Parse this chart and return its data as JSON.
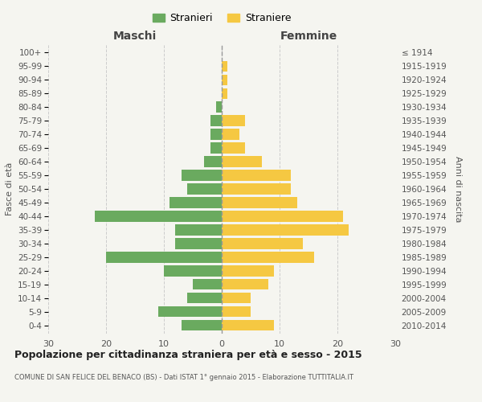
{
  "age_groups": [
    "0-4",
    "5-9",
    "10-14",
    "15-19",
    "20-24",
    "25-29",
    "30-34",
    "35-39",
    "40-44",
    "45-49",
    "50-54",
    "55-59",
    "60-64",
    "65-69",
    "70-74",
    "75-79",
    "80-84",
    "85-89",
    "90-94",
    "95-99",
    "100+"
  ],
  "birth_years": [
    "2010-2014",
    "2005-2009",
    "2000-2004",
    "1995-1999",
    "1990-1994",
    "1985-1989",
    "1980-1984",
    "1975-1979",
    "1970-1974",
    "1965-1969",
    "1960-1964",
    "1955-1959",
    "1950-1954",
    "1945-1949",
    "1940-1944",
    "1935-1939",
    "1930-1934",
    "1925-1929",
    "1920-1924",
    "1915-1919",
    "≤ 1914"
  ],
  "males": [
    7,
    11,
    6,
    5,
    10,
    20,
    8,
    8,
    22,
    9,
    6,
    7,
    3,
    2,
    2,
    2,
    1,
    0,
    0,
    0,
    0
  ],
  "females": [
    9,
    5,
    5,
    8,
    9,
    16,
    14,
    22,
    21,
    13,
    12,
    12,
    7,
    4,
    3,
    4,
    0,
    1,
    1,
    1,
    0
  ],
  "male_color": "#6aaa5f",
  "female_color": "#f5c842",
  "title": "Popolazione per cittadinanza straniera per età e sesso - 2015",
  "subtitle": "COMUNE DI SAN FELICE DEL BENACO (BS) - Dati ISTAT 1° gennaio 2015 - Elaborazione TUTTITALIA.IT",
  "ylabel_left": "Fasce di età",
  "ylabel_right": "Anni di nascita",
  "xlabel_left": "Maschi",
  "xlabel_right": "Femmine",
  "legend_stranieri": "Stranieri",
  "legend_straniere": "Straniere",
  "xlim": 30,
  "background_color": "#f5f5f0",
  "grid_color": "#cccccc",
  "bar_height": 0.78
}
